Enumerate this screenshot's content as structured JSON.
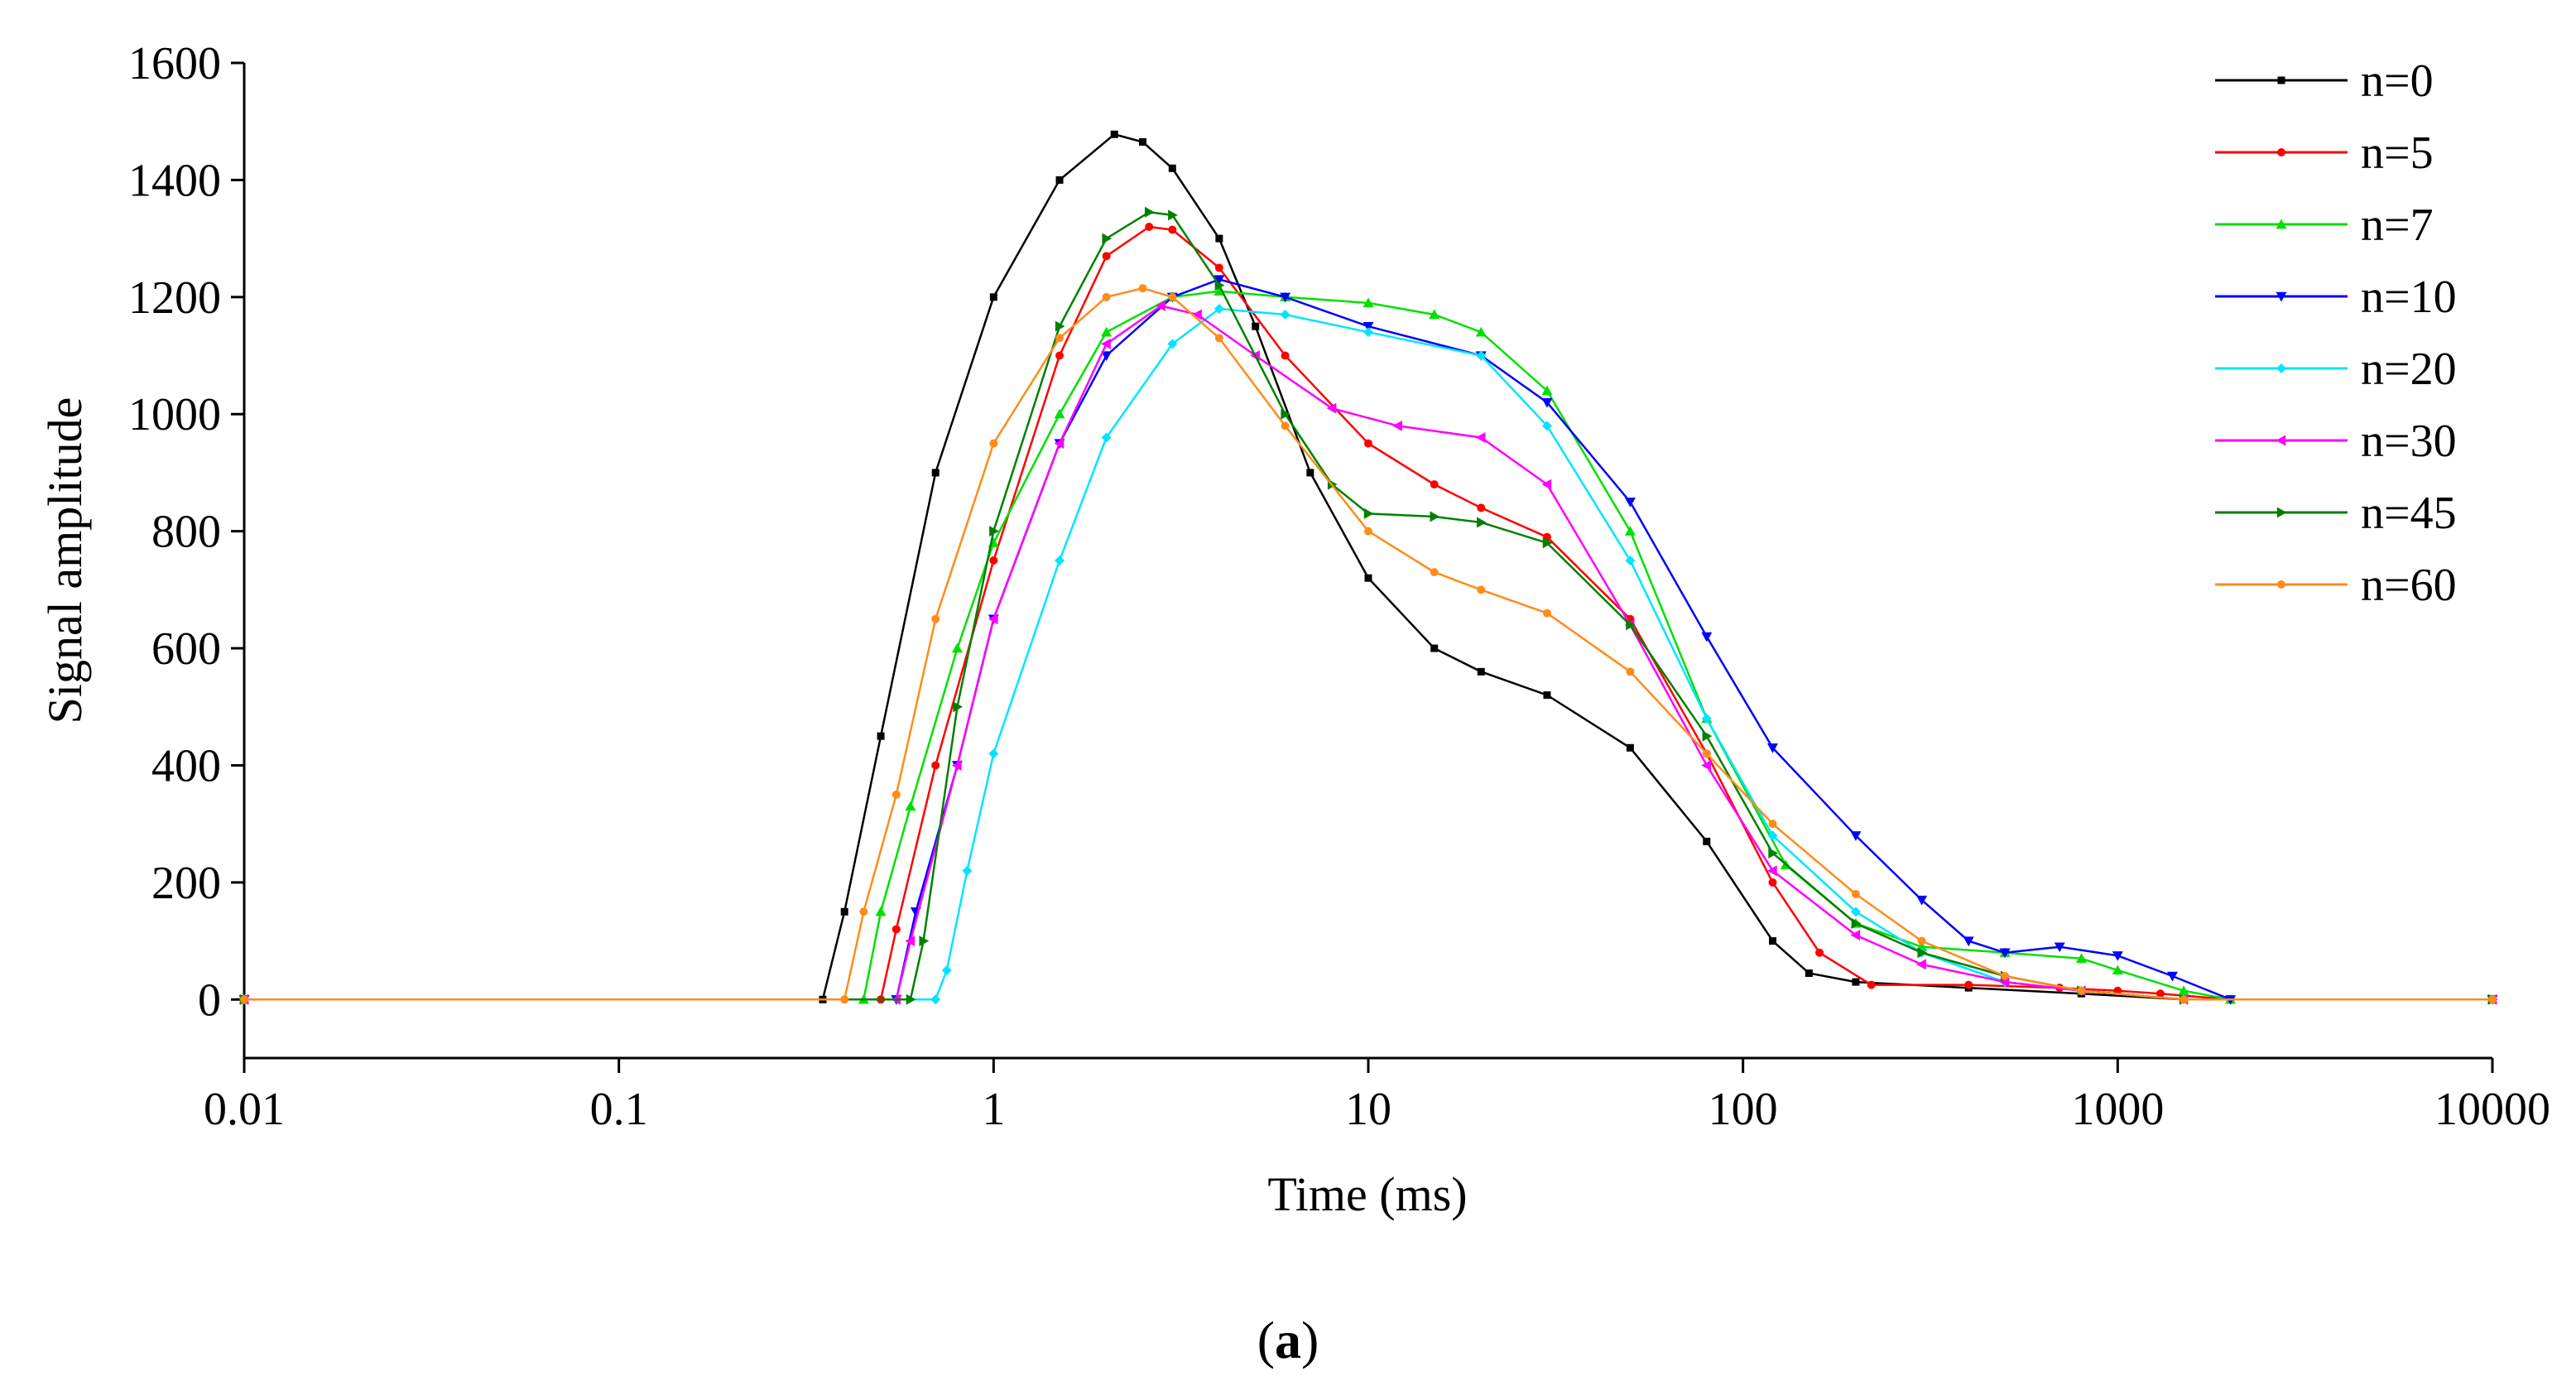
{
  "chart_data": {
    "type": "line",
    "title": "",
    "xlabel": "Time (ms)",
    "ylabel": "Signal amplitude",
    "xscale": "log",
    "xlim": [
      0.01,
      10000
    ],
    "ylim": [
      -100,
      1600
    ],
    "xticks": [
      {
        "value": 0.01,
        "label": "0.01"
      },
      {
        "value": 0.1,
        "label": "0.1"
      },
      {
        "value": 1,
        "label": "1"
      },
      {
        "value": 10,
        "label": "10"
      },
      {
        "value": 100,
        "label": "100"
      },
      {
        "value": 1000,
        "label": "1000"
      },
      {
        "value": 10000,
        "label": "10000"
      }
    ],
    "yticks": [
      {
        "value": 0,
        "label": "0"
      },
      {
        "value": 200,
        "label": "200"
      },
      {
        "value": 400,
        "label": "400"
      },
      {
        "value": 600,
        "label": "600"
      },
      {
        "value": 800,
        "label": "800"
      },
      {
        "value": 1000,
        "label": "1000"
      },
      {
        "value": 1200,
        "label": "1200"
      },
      {
        "value": 1400,
        "label": "1400"
      },
      {
        "value": 1600,
        "label": "1600"
      }
    ],
    "grid": false,
    "legend_position": "top-right",
    "series": [
      {
        "name": "n=0",
        "color": "#000000",
        "marker": "square",
        "points": [
          [
            0.01,
            0
          ],
          [
            0.35,
            0
          ],
          [
            0.4,
            150
          ],
          [
            0.5,
            450
          ],
          [
            0.7,
            900
          ],
          [
            1,
            1200
          ],
          [
            1.5,
            1400
          ],
          [
            2.1,
            1478
          ],
          [
            2.5,
            1465
          ],
          [
            3,
            1420
          ],
          [
            4,
            1300
          ],
          [
            5,
            1150
          ],
          [
            7,
            900
          ],
          [
            10,
            720
          ],
          [
            15,
            600
          ],
          [
            20,
            560
          ],
          [
            30,
            520
          ],
          [
            50,
            430
          ],
          [
            80,
            270
          ],
          [
            120,
            100
          ],
          [
            150,
            45
          ],
          [
            200,
            30
          ],
          [
            400,
            20
          ],
          [
            800,
            10
          ],
          [
            1500,
            0
          ],
          [
            10000,
            0
          ]
        ]
      },
      {
        "name": "n=5",
        "color": "#ff0000",
        "marker": "circle",
        "points": [
          [
            0.01,
            0
          ],
          [
            0.5,
            0
          ],
          [
            0.55,
            120
          ],
          [
            0.7,
            400
          ],
          [
            1,
            750
          ],
          [
            1.5,
            1100
          ],
          [
            2,
            1270
          ],
          [
            2.6,
            1320
          ],
          [
            3,
            1315
          ],
          [
            4,
            1250
          ],
          [
            6,
            1100
          ],
          [
            10,
            950
          ],
          [
            15,
            880
          ],
          [
            20,
            840
          ],
          [
            30,
            790
          ],
          [
            50,
            650
          ],
          [
            80,
            420
          ],
          [
            120,
            200
          ],
          [
            160,
            80
          ],
          [
            220,
            25
          ],
          [
            400,
            25
          ],
          [
            700,
            20
          ],
          [
            1000,
            15
          ],
          [
            1300,
            10
          ],
          [
            2000,
            0
          ],
          [
            10000,
            0
          ]
        ]
      },
      {
        "name": "n=7",
        "color": "#00e000",
        "marker": "triangle-up",
        "points": [
          [
            0.01,
            0
          ],
          [
            0.45,
            0
          ],
          [
            0.5,
            150
          ],
          [
            0.6,
            330
          ],
          [
            0.8,
            600
          ],
          [
            1,
            780
          ],
          [
            1.5,
            1000
          ],
          [
            2,
            1140
          ],
          [
            3,
            1200
          ],
          [
            4,
            1210
          ],
          [
            6,
            1200
          ],
          [
            10,
            1190
          ],
          [
            15,
            1170
          ],
          [
            20,
            1140
          ],
          [
            30,
            1040
          ],
          [
            50,
            800
          ],
          [
            80,
            480
          ],
          [
            130,
            230
          ],
          [
            200,
            130
          ],
          [
            300,
            90
          ],
          [
            500,
            80
          ],
          [
            800,
            70
          ],
          [
            1000,
            50
          ],
          [
            1500,
            15
          ],
          [
            2000,
            0
          ],
          [
            10000,
            0
          ]
        ]
      },
      {
        "name": "n=10",
        "color": "#0000ff",
        "marker": "triangle-down",
        "points": [
          [
            0.01,
            0
          ],
          [
            0.55,
            0
          ],
          [
            0.62,
            150
          ],
          [
            0.8,
            400
          ],
          [
            1,
            650
          ],
          [
            1.5,
            950
          ],
          [
            2,
            1100
          ],
          [
            3,
            1200
          ],
          [
            4,
            1230
          ],
          [
            6,
            1200
          ],
          [
            10,
            1150
          ],
          [
            20,
            1100
          ],
          [
            30,
            1020
          ],
          [
            50,
            850
          ],
          [
            80,
            620
          ],
          [
            120,
            430
          ],
          [
            200,
            280
          ],
          [
            300,
            170
          ],
          [
            400,
            100
          ],
          [
            500,
            80
          ],
          [
            700,
            90
          ],
          [
            1000,
            75
          ],
          [
            1400,
            40
          ],
          [
            2000,
            0
          ],
          [
            10000,
            0
          ]
        ]
      },
      {
        "name": "n=20",
        "color": "#00e5ff",
        "marker": "diamond",
        "points": [
          [
            0.01,
            0
          ],
          [
            0.7,
            0
          ],
          [
            0.75,
            50
          ],
          [
            0.85,
            220
          ],
          [
            1,
            420
          ],
          [
            1.5,
            750
          ],
          [
            2,
            960
          ],
          [
            3,
            1120
          ],
          [
            4,
            1180
          ],
          [
            6,
            1170
          ],
          [
            10,
            1140
          ],
          [
            20,
            1100
          ],
          [
            30,
            980
          ],
          [
            50,
            750
          ],
          [
            80,
            480
          ],
          [
            120,
            280
          ],
          [
            200,
            150
          ],
          [
            300,
            80
          ],
          [
            500,
            30
          ],
          [
            800,
            15
          ],
          [
            1500,
            0
          ],
          [
            10000,
            0
          ]
        ]
      },
      {
        "name": "n=30",
        "color": "#ff00ff",
        "marker": "triangle-left",
        "points": [
          [
            0.01,
            0
          ],
          [
            0.55,
            0
          ],
          [
            0.6,
            100
          ],
          [
            0.8,
            400
          ],
          [
            1,
            650
          ],
          [
            1.5,
            950
          ],
          [
            2,
            1120
          ],
          [
            2.8,
            1185
          ],
          [
            3.5,
            1170
          ],
          [
            5,
            1100
          ],
          [
            8,
            1010
          ],
          [
            12,
            980
          ],
          [
            20,
            960
          ],
          [
            30,
            880
          ],
          [
            50,
            640
          ],
          [
            80,
            400
          ],
          [
            120,
            220
          ],
          [
            200,
            110
          ],
          [
            300,
            60
          ],
          [
            500,
            30
          ],
          [
            800,
            15
          ],
          [
            1500,
            0
          ],
          [
            10000,
            0
          ]
        ]
      },
      {
        "name": "n=45",
        "color": "#008000",
        "marker": "triangle-right",
        "points": [
          [
            0.01,
            0
          ],
          [
            0.6,
            0
          ],
          [
            0.65,
            100
          ],
          [
            0.8,
            500
          ],
          [
            1,
            800
          ],
          [
            1.5,
            1150
          ],
          [
            2,
            1300
          ],
          [
            2.6,
            1345
          ],
          [
            3,
            1340
          ],
          [
            4,
            1220
          ],
          [
            6,
            1000
          ],
          [
            8,
            880
          ],
          [
            10,
            830
          ],
          [
            15,
            825
          ],
          [
            20,
            815
          ],
          [
            30,
            780
          ],
          [
            50,
            640
          ],
          [
            80,
            450
          ],
          [
            120,
            250
          ],
          [
            200,
            130
          ],
          [
            300,
            80
          ],
          [
            500,
            40
          ],
          [
            800,
            15
          ],
          [
            1500,
            0
          ],
          [
            10000,
            0
          ]
        ]
      },
      {
        "name": "n=60",
        "color": "#ff8c1a",
        "marker": "circle",
        "points": [
          [
            0.01,
            0
          ],
          [
            0.4,
            0
          ],
          [
            0.45,
            150
          ],
          [
            0.55,
            350
          ],
          [
            0.7,
            650
          ],
          [
            1,
            950
          ],
          [
            1.5,
            1130
          ],
          [
            2,
            1200
          ],
          [
            2.5,
            1215
          ],
          [
            3,
            1200
          ],
          [
            4,
            1130
          ],
          [
            6,
            980
          ],
          [
            10,
            800
          ],
          [
            15,
            730
          ],
          [
            20,
            700
          ],
          [
            30,
            660
          ],
          [
            50,
            560
          ],
          [
            80,
            420
          ],
          [
            120,
            300
          ],
          [
            200,
            180
          ],
          [
            300,
            100
          ],
          [
            500,
            40
          ],
          [
            800,
            15
          ],
          [
            1500,
            0
          ],
          [
            10000,
            0
          ]
        ]
      }
    ]
  },
  "caption": {
    "open": "(",
    "letter": "a",
    "close": ")"
  }
}
